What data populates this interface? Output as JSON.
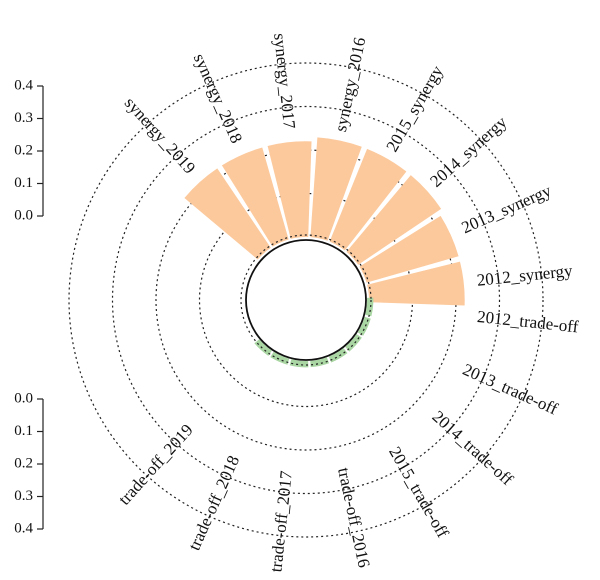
{
  "chart_data": {
    "type": "circular-bar",
    "categories": [
      "2012",
      "2013",
      "2014",
      "2015",
      "2016",
      "2017",
      "2018",
      "2019"
    ],
    "series": [
      {
        "name": "synergy",
        "labels": [
          "2012_synergy",
          "2013_synergy",
          "2014_synergy",
          "2015_synergy",
          "synergy_2016",
          "synergy_2017",
          "synergy_2018",
          "synergy_2019"
        ],
        "values": [
          0.22,
          0.22,
          0.23,
          0.23,
          0.23,
          0.22,
          0.22,
          0.22
        ],
        "color": "#fcc99c"
      },
      {
        "name": "trade-off",
        "labels": [
          "2012_trade-off",
          "2013_trade-off",
          "2014_trade-off",
          "2015_trade-off",
          "trade-off_2016",
          "trade-off_2017",
          "trade-off_2018",
          "trade-off_2019"
        ],
        "values": [
          0.01,
          0.01,
          0.01,
          0.01,
          0.01,
          0.01,
          0.01,
          0.01
        ],
        "color": "#a9d6a2"
      }
    ],
    "synergy_axis": {
      "range": [
        0.0,
        0.4
      ],
      "ticks": [
        "0.0",
        "0.1",
        "0.2",
        "0.3",
        "0.4"
      ]
    },
    "tradeoff_axis": {
      "range": [
        0.0,
        0.4
      ],
      "ticks": [
        "0.0",
        "0.1",
        "0.2",
        "0.3",
        "0.4"
      ],
      "direction": "downward"
    },
    "reference_rings": [
      0.1,
      0.2,
      0.3,
      0.4
    ]
  }
}
